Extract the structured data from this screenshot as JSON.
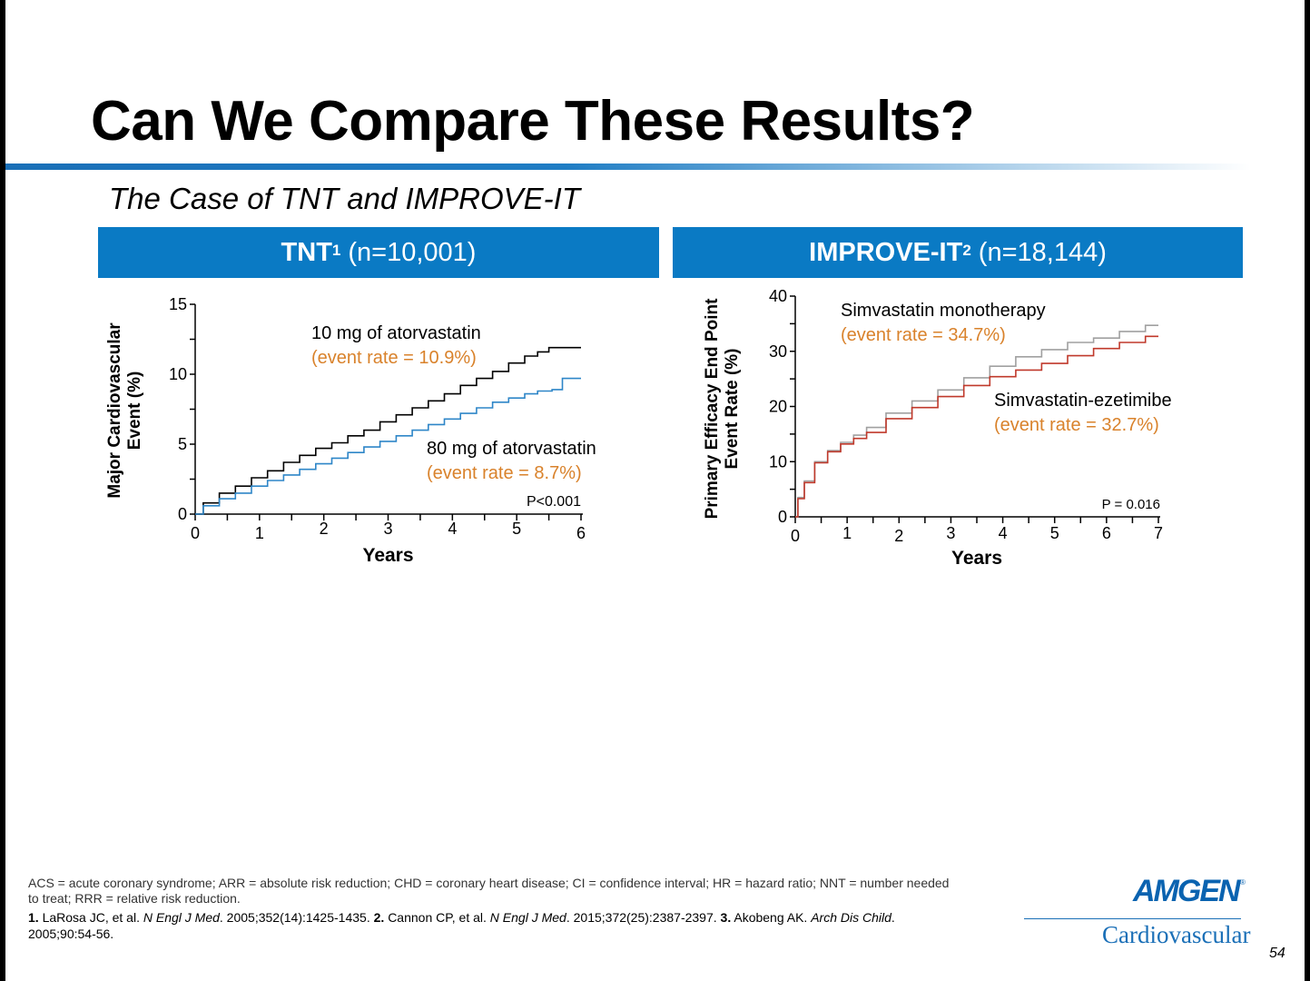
{
  "slide": {
    "title": "Can We Compare These Results?",
    "subtitle": "The Case of TNT and IMPROVE-IT",
    "page_number": "54"
  },
  "panels": {
    "tnt": {
      "name": "TNT",
      "sup": "1",
      "n": "(n=10,001)"
    },
    "improve": {
      "name": "IMPROVE-IT",
      "sup": "2",
      "n": "(n=18,144)"
    }
  },
  "chart_data": [
    {
      "type": "line",
      "ylabel": [
        "Major Cardiovascular",
        "Event (%)"
      ],
      "xlabel": "Years",
      "xlim": [
        0,
        6
      ],
      "ylim": [
        0,
        15
      ],
      "xticks": [
        0,
        1,
        2,
        3,
        4,
        5,
        6
      ],
      "yticks": [
        0,
        5,
        10,
        15
      ],
      "p_value": "P<0.001",
      "series": [
        {
          "name": "10 mg of atorvastatin",
          "annotation": "(event rate  = 10.9%)",
          "color": "#000000",
          "x": [
            0,
            0.25,
            0.5,
            0.75,
            1.0,
            1.25,
            1.5,
            1.75,
            2.0,
            2.25,
            2.5,
            2.75,
            3.0,
            3.25,
            3.5,
            3.75,
            4.0,
            4.25,
            4.5,
            4.75,
            5.0,
            5.25,
            5.4,
            5.6,
            6.0
          ],
          "y": [
            0,
            0.8,
            1.5,
            2.0,
            2.6,
            3.1,
            3.7,
            4.2,
            4.7,
            5.1,
            5.6,
            6.0,
            6.6,
            7.1,
            7.6,
            8.1,
            8.6,
            9.2,
            9.7,
            10.2,
            10.8,
            11.3,
            11.6,
            11.9,
            11.9
          ]
        },
        {
          "name": "80 mg of atorvastatin",
          "annotation": "(event rate = 8.7%)",
          "color": "#2e86c8",
          "x": [
            0,
            0.25,
            0.5,
            0.75,
            1.0,
            1.25,
            1.5,
            1.75,
            2.0,
            2.25,
            2.5,
            2.75,
            3.0,
            3.25,
            3.5,
            3.75,
            4.0,
            4.25,
            4.5,
            4.75,
            5.0,
            5.25,
            5.4,
            5.7,
            5.72,
            6.0
          ],
          "y": [
            0,
            0.6,
            1.1,
            1.5,
            2.0,
            2.4,
            2.8,
            3.2,
            3.6,
            4.0,
            4.4,
            4.8,
            5.2,
            5.6,
            6.0,
            6.4,
            6.8,
            7.2,
            7.6,
            8.0,
            8.3,
            8.6,
            8.8,
            8.9,
            9.7,
            9.7
          ]
        }
      ]
    },
    {
      "type": "line",
      "ylabel": [
        "Primary Efficacy End Point",
        "Event Rate (%)"
      ],
      "xlabel": "Years",
      "xlim": [
        0,
        7
      ],
      "ylim": [
        0,
        40
      ],
      "xticks": [
        0,
        1,
        2,
        3,
        4,
        5,
        6,
        7
      ],
      "yticks": [
        0,
        10,
        20,
        30,
        40
      ],
      "p_value": "P = 0.016",
      "series": [
        {
          "name": "Simvastatin monotherapy",
          "annotation": "(event rate  = 34.7%)",
          "color": "#a0a0a0",
          "x": [
            0,
            0.1,
            0.25,
            0.5,
            0.75,
            1.0,
            1.25,
            1.5,
            2.0,
            2.5,
            3.0,
            3.5,
            4.0,
            4.5,
            5.0,
            5.5,
            6.0,
            6.5,
            7.0
          ],
          "y": [
            0,
            3.5,
            6.5,
            10.0,
            12.0,
            13.5,
            14.8,
            16.2,
            18.8,
            21.0,
            23.0,
            25.2,
            27.3,
            29.0,
            30.3,
            31.6,
            32.4,
            33.6,
            34.7
          ]
        },
        {
          "name": "Simvastatin-ezetimibe",
          "annotation": "(event rate  = 32.7%)",
          "color": "#c0392b",
          "x": [
            0,
            0.1,
            0.25,
            0.5,
            0.75,
            1.0,
            1.25,
            1.5,
            2.0,
            2.5,
            3.0,
            3.5,
            4.0,
            4.5,
            5.0,
            5.5,
            6.0,
            6.5,
            7.0
          ],
          "y": [
            0,
            3.3,
            6.2,
            9.8,
            11.8,
            13.2,
            14.2,
            15.3,
            17.8,
            19.8,
            21.8,
            23.8,
            25.4,
            26.6,
            27.8,
            29.2,
            30.5,
            31.6,
            32.7
          ]
        }
      ]
    }
  ],
  "footer": {
    "abbreviations_line1": "ACS = acute coronary syndrome; ARR = absolute risk reduction; CHD = coronary heart disease; CI = confidence interval; HR = hazard ratio; NNT = number needed",
    "abbreviations_line2": "to treat; RRR = relative risk reduction.",
    "refs": [
      {
        "num": "1.",
        "authors": "LaRosa JC, et al.",
        "journal": "N Engl J Med",
        "cite": ". 2005;352(14):1425-1435."
      },
      {
        "num": "2.",
        "authors": "Cannon CP, et al.",
        "journal": "N Engl J Med",
        "cite": ". 2015;372(25):2387-2397."
      },
      {
        "num": "3.",
        "authors": "Akobeng AK.",
        "journal": "Arch Dis Child",
        "cite": "."
      }
    ],
    "refs_line2": "2005;90:54-56."
  },
  "logo": {
    "brand": "AMGEN",
    "reg": "®",
    "division": "Cardiovascular",
    "color": "#0a63b0"
  }
}
